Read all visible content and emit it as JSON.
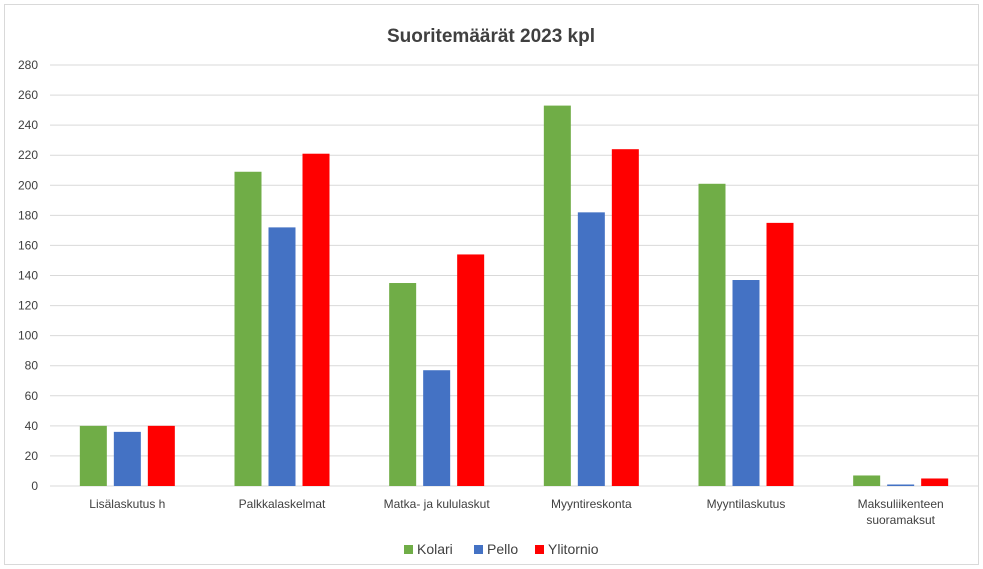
{
  "chart_data": {
    "type": "bar",
    "title": "Suoritemäärät 2023  kpl",
    "categories": [
      "Lisälaskutus  h",
      "Palkkalaskelmat",
      "Matka- ja kululaskut",
      "Myyntireskonta",
      "Myyntilaskutus",
      "Maksuliikenteen suoramaksut"
    ],
    "category_lines": [
      [
        "Lisälaskutus  h"
      ],
      [
        "Palkkalaskelmat"
      ],
      [
        "Matka- ja kululaskut"
      ],
      [
        "Myyntireskonta"
      ],
      [
        "Myyntilaskutus"
      ],
      [
        "Maksuliikenteen",
        "suoramaksut"
      ]
    ],
    "series": [
      {
        "name": "Kolari",
        "color": "#70ad47",
        "values": [
          40,
          209,
          135,
          253,
          201,
          7
        ]
      },
      {
        "name": "Pello",
        "color": "#4472c4",
        "values": [
          36,
          172,
          77,
          182,
          137,
          1
        ]
      },
      {
        "name": "Ylitornio",
        "color": "#ff0000",
        "values": [
          40,
          221,
          154,
          224,
          175,
          5
        ]
      }
    ],
    "ylim": [
      0,
      280
    ],
    "yticks": [
      0,
      20,
      40,
      60,
      80,
      100,
      120,
      140,
      160,
      180,
      200,
      220,
      240,
      260,
      280
    ],
    "grid": true,
    "legend_position": "bottom"
  }
}
